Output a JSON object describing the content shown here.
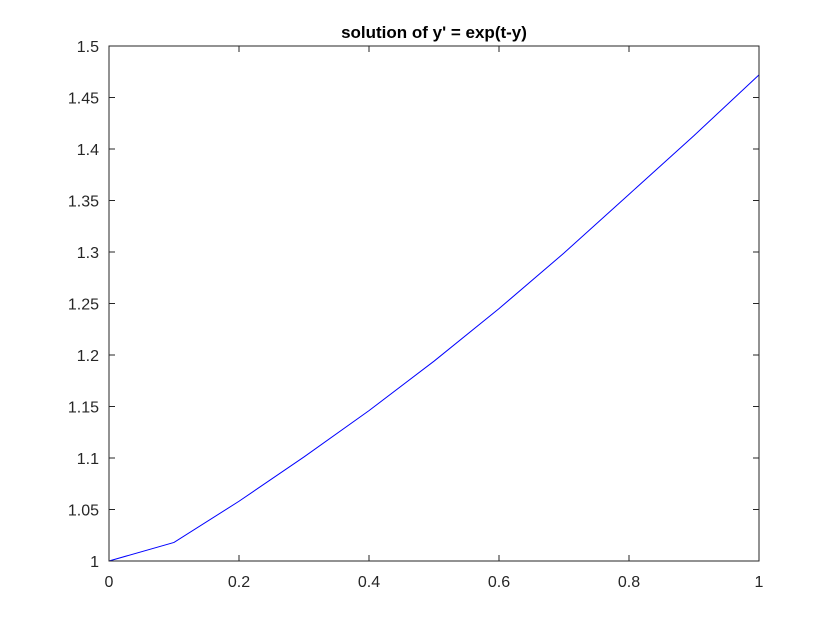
{
  "chart_data": {
    "type": "line",
    "title": "solution of y' = exp(t-y)",
    "xlabel": "",
    "ylabel": "",
    "xlim": [
      0,
      1
    ],
    "ylim": [
      1,
      1.5
    ],
    "x_ticks": [
      0,
      0.2,
      0.4,
      0.6,
      0.8,
      1
    ],
    "x_tick_labels": [
      "0",
      "0.2",
      "0.4",
      "0.6",
      "0.8",
      "1"
    ],
    "y_ticks": [
      1,
      1.05,
      1.1,
      1.15,
      1.2,
      1.25,
      1.3,
      1.35,
      1.4,
      1.45,
      1.5
    ],
    "y_tick_labels": [
      "1",
      "1.05",
      "1.1",
      "1.15",
      "1.2",
      "1.25",
      "1.3",
      "1.35",
      "1.4",
      "1.45",
      "1.5"
    ],
    "grid": false,
    "box": true,
    "series": [
      {
        "color": "#0000ff",
        "x": [
          0,
          0.1,
          0.2,
          0.3,
          0.4,
          0.5,
          0.6,
          0.7,
          0.8,
          0.9,
          1.0
        ],
        "y": [
          1.0,
          1.018,
          1.058,
          1.101,
          1.146,
          1.194,
          1.245,
          1.299,
          1.356,
          1.413,
          1.472
        ]
      }
    ]
  }
}
